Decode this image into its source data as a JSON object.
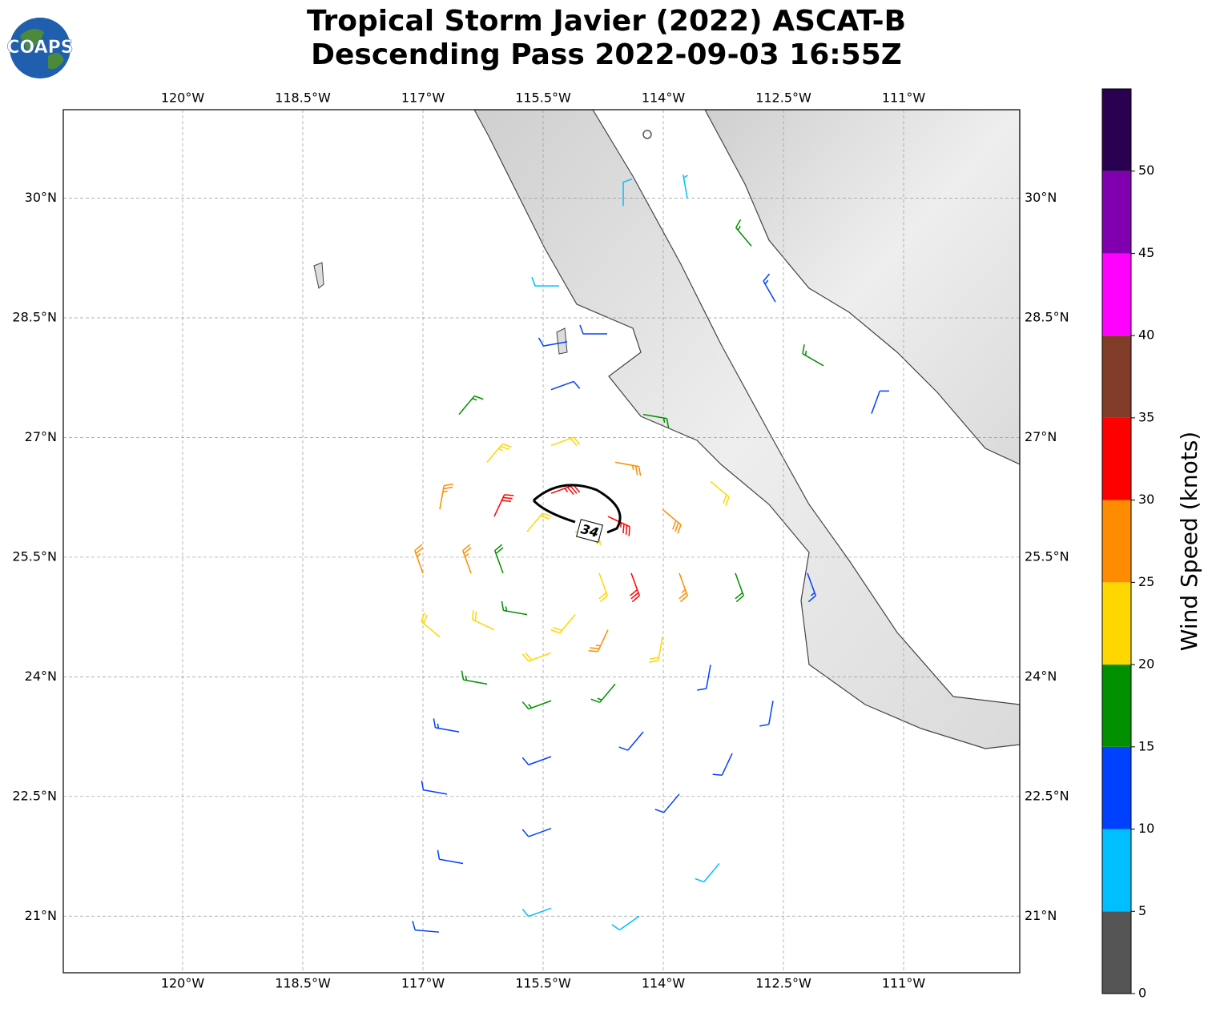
{
  "title_lines": [
    "Tropical Storm Javier (2022) ASCAT-B",
    "Descending Pass 2022-09-03 16:55Z"
  ],
  "logo_text": "COAPS",
  "map": {
    "xlim": [
      -121.49,
      -109.55
    ],
    "ylim": [
      20.29,
      31.11
    ],
    "xticks": [
      {
        "value": -120,
        "label": "120°W"
      },
      {
        "value": -118.5,
        "label": "118.5°W"
      },
      {
        "value": -117,
        "label": "117°W"
      },
      {
        "value": -115.5,
        "label": "115.5°W"
      },
      {
        "value": -114,
        "label": "114°W"
      },
      {
        "value": -112.5,
        "label": "112.5°W"
      },
      {
        "value": -111,
        "label": "111°W"
      }
    ],
    "yticks": [
      {
        "value": 21,
        "label": "21°N"
      },
      {
        "value": 22.5,
        "label": "22.5°N"
      },
      {
        "value": 24,
        "label": "24°N"
      },
      {
        "value": 25.5,
        "label": "25.5°N"
      },
      {
        "value": 27,
        "label": "27°N"
      },
      {
        "value": 28.5,
        "label": "28.5°N"
      },
      {
        "value": 30,
        "label": "30°N"
      }
    ],
    "grid": true
  },
  "contour": {
    "level": 34
  },
  "wind_barbs": {
    "lon": [
      -114.8,
      -115.1,
      -115.7,
      -116.0,
      -115.7,
      -115.1,
      -114.4,
      -114.69,
      -115.4,
      -116.11,
      -116.4,
      -116.11,
      -115.4,
      -114.69,
      -113.8,
      -114.01,
      -114.6,
      -115.4,
      -116.2,
      -116.79,
      -117.0,
      -116.79,
      -116.2,
      -115.4,
      -114.6,
      -114.01,
      -113.1,
      -113.41,
      -114.25,
      -115.4,
      -116.55,
      -116.55,
      -115.4,
      -114.25,
      -113.41,
      -112.2,
      -112.63,
      -113.8,
      -115.4,
      -116.7,
      -113.14,
      -115.4,
      -113.3,
      -116.5,
      -114.3,
      -116.8,
      -112.9,
      -112.6,
      -112.0,
      -111.4,
      -113.7,
      -114.5,
      -115.3,
      -115.2,
      -114.7,
      -114.2
    ],
    "lat": [
      25.3,
      25.82,
      25.82,
      25.3,
      24.78,
      24.78,
      25.3,
      26.01,
      26.3,
      26.01,
      25.3,
      24.59,
      24.3,
      24.59,
      25.3,
      26.1,
      26.69,
      26.9,
      26.69,
      26.1,
      25.3,
      24.5,
      23.91,
      23.7,
      23.91,
      24.5,
      25.3,
      26.45,
      27.29,
      27.6,
      27.29,
      23.31,
      23.0,
      23.31,
      24.15,
      25.3,
      23.7,
      22.53,
      22.1,
      22.53,
      23.04,
      21.1,
      21.66,
      21.66,
      21.0,
      20.8,
      29.4,
      28.7,
      27.9,
      27.3,
      30.0,
      29.9,
      28.9,
      28.2,
      28.3,
      30.8
    ],
    "speed": [
      22,
      24,
      20,
      18,
      16,
      20,
      30,
      33,
      34,
      30,
      25,
      22,
      20,
      26,
      27,
      28,
      25,
      22,
      24,
      27,
      25,
      20,
      17,
      15,
      16,
      20,
      18,
      20,
      16,
      12,
      15,
      13,
      12,
      11,
      12,
      13,
      12,
      10,
      11,
      12,
      11,
      9,
      8,
      11,
      8,
      12,
      17,
      13,
      16,
      12,
      7,
      8,
      9,
      12,
      11,
      2
    ],
    "direction": [
      160,
      100,
      40,
      340,
      280,
      220,
      160,
      115,
      70,
      25,
      340,
      295,
      250,
      205,
      160,
      130,
      100,
      70,
      40,
      10,
      340,
      310,
      280,
      250,
      220,
      190,
      160,
      130,
      100,
      70,
      40,
      280,
      250,
      220,
      190,
      160,
      190,
      220,
      250,
      280,
      205,
      250,
      220,
      280,
      235,
      275,
      320,
      330,
      300,
      20,
      350,
      0,
      270,
      260,
      270,
      0
    ]
  },
  "colorbar": {
    "label": "Wind Speed (knots)",
    "levels": [
      0,
      5,
      10,
      15,
      20,
      25,
      30,
      35,
      40,
      45,
      50,
      55
    ],
    "colors": [
      "#555555",
      "#00bfff",
      "#0040ff",
      "#009000",
      "#ffd700",
      "#ff8c00",
      "#ff0000",
      "#803c28",
      "#ff00ff",
      "#8000b0",
      "#2a0050"
    ],
    "ticks": [
      0,
      5,
      10,
      15,
      20,
      25,
      30,
      35,
      40,
      45,
      50
    ]
  }
}
